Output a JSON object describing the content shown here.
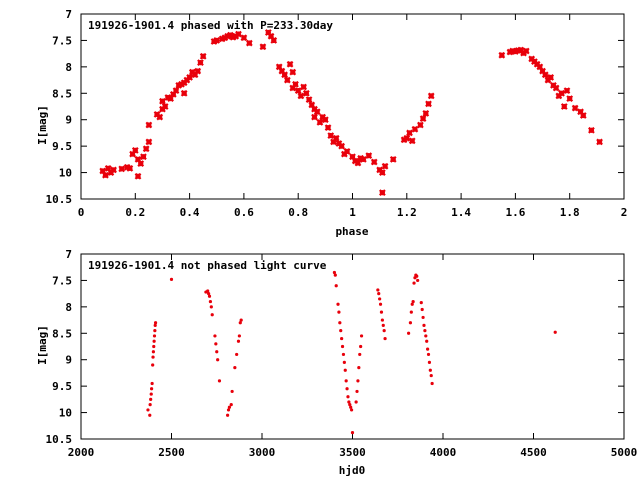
{
  "colors": {
    "points": "#e8000b",
    "frame": "#000000",
    "background": "#ffffff"
  },
  "chart_data": [
    {
      "type": "scatter",
      "title": "191926-1901.4 phased with P=233.30day",
      "xlabel": "phase",
      "ylabel": "I[mag]",
      "xlim": [
        0,
        2
      ],
      "ylim": [
        7,
        10.5
      ],
      "y_inverted": true,
      "grid": false,
      "xticks": [
        "0",
        "0.2",
        "0.4",
        "0.6",
        "0.8",
        "1",
        "1.2",
        "1.4",
        "1.6",
        "1.8",
        "2"
      ],
      "yticks": [
        "7",
        "7.5",
        "8",
        "8.5",
        "9",
        "9.5",
        "10",
        "10.5"
      ],
      "series": [
        {
          "marker": "x",
          "points": [
            [
              0.08,
              9.97
            ],
            [
              0.09,
              10.05
            ],
            [
              0.1,
              9.92
            ],
            [
              0.11,
              10.0
            ],
            [
              0.12,
              9.95
            ],
            [
              0.15,
              9.93
            ],
            [
              0.17,
              9.9
            ],
            [
              0.18,
              9.92
            ],
            [
              0.19,
              9.65
            ],
            [
              0.2,
              9.58
            ],
            [
              0.21,
              9.75
            ],
            [
              0.21,
              10.07
            ],
            [
              0.22,
              9.83
            ],
            [
              0.23,
              9.7
            ],
            [
              0.24,
              9.55
            ],
            [
              0.25,
              9.42
            ],
            [
              0.25,
              9.1
            ],
            [
              0.28,
              8.9
            ],
            [
              0.29,
              8.95
            ],
            [
              0.3,
              8.8
            ],
            [
              0.3,
              8.65
            ],
            [
              0.31,
              8.75
            ],
            [
              0.32,
              8.58
            ],
            [
              0.33,
              8.6
            ],
            [
              0.34,
              8.52
            ],
            [
              0.35,
              8.45
            ],
            [
              0.36,
              8.35
            ],
            [
              0.37,
              8.33
            ],
            [
              0.38,
              8.3
            ],
            [
              0.38,
              8.5
            ],
            [
              0.39,
              8.25
            ],
            [
              0.4,
              8.2
            ],
            [
              0.41,
              8.1
            ],
            [
              0.42,
              8.15
            ],
            [
              0.43,
              8.08
            ],
            [
              0.44,
              7.92
            ],
            [
              0.45,
              7.8
            ],
            [
              0.49,
              7.52
            ],
            [
              0.5,
              7.5
            ],
            [
              0.52,
              7.47
            ],
            [
              0.53,
              7.45
            ],
            [
              0.54,
              7.42
            ],
            [
              0.55,
              7.4
            ],
            [
              0.56,
              7.44
            ],
            [
              0.57,
              7.42
            ],
            [
              0.58,
              7.38
            ],
            [
              0.6,
              7.45
            ],
            [
              0.62,
              7.55
            ],
            [
              0.67,
              7.62
            ],
            [
              0.69,
              7.35
            ],
            [
              0.7,
              7.42
            ],
            [
              0.71,
              7.5
            ],
            [
              0.73,
              8.0
            ],
            [
              0.74,
              8.08
            ],
            [
              0.75,
              8.15
            ],
            [
              0.76,
              8.25
            ],
            [
              0.77,
              7.95
            ],
            [
              0.78,
              8.1
            ],
            [
              0.78,
              8.4
            ],
            [
              0.79,
              8.33
            ],
            [
              0.8,
              8.45
            ],
            [
              0.81,
              8.55
            ],
            [
              0.82,
              8.38
            ],
            [
              0.83,
              8.5
            ],
            [
              0.84,
              8.62
            ],
            [
              0.85,
              8.72
            ],
            [
              0.86,
              8.8
            ],
            [
              0.86,
              8.95
            ],
            [
              0.87,
              8.85
            ],
            [
              0.88,
              9.05
            ],
            [
              0.89,
              8.95
            ],
            [
              0.9,
              9.0
            ],
            [
              0.91,
              9.15
            ],
            [
              0.92,
              9.3
            ],
            [
              0.93,
              9.42
            ],
            [
              0.94,
              9.35
            ],
            [
              0.95,
              9.45
            ],
            [
              0.96,
              9.5
            ],
            [
              0.97,
              9.65
            ],
            [
              0.98,
              9.6
            ],
            [
              1.0,
              9.7
            ],
            [
              1.01,
              9.78
            ],
            [
              1.02,
              9.82
            ],
            [
              1.03,
              9.73
            ],
            [
              1.04,
              9.75
            ],
            [
              1.06,
              9.68
            ],
            [
              1.08,
              9.8
            ],
            [
              1.1,
              9.95
            ],
            [
              1.11,
              10.0
            ],
            [
              1.11,
              10.38
            ],
            [
              1.12,
              9.88
            ],
            [
              1.15,
              9.75
            ],
            [
              1.19,
              9.38
            ],
            [
              1.2,
              9.35
            ],
            [
              1.21,
              9.25
            ],
            [
              1.22,
              9.4
            ],
            [
              1.23,
              9.18
            ],
            [
              1.25,
              9.1
            ],
            [
              1.26,
              8.98
            ],
            [
              1.27,
              8.88
            ],
            [
              1.28,
              8.7
            ],
            [
              1.29,
              8.55
            ],
            [
              1.55,
              7.78
            ],
            [
              1.58,
              7.72
            ],
            [
              1.59,
              7.7
            ],
            [
              1.6,
              7.71
            ],
            [
              1.61,
              7.69
            ],
            [
              1.62,
              7.68
            ],
            [
              1.63,
              7.74
            ],
            [
              1.64,
              7.7
            ],
            [
              1.66,
              7.85
            ],
            [
              1.67,
              7.9
            ],
            [
              1.68,
              7.95
            ],
            [
              1.69,
              8.0
            ],
            [
              1.7,
              8.08
            ],
            [
              1.71,
              8.15
            ],
            [
              1.72,
              8.25
            ],
            [
              1.73,
              8.2
            ],
            [
              1.74,
              8.35
            ],
            [
              1.75,
              8.4
            ],
            [
              1.76,
              8.55
            ],
            [
              1.77,
              8.5
            ],
            [
              1.78,
              8.75
            ],
            [
              1.79,
              8.45
            ],
            [
              1.8,
              8.6
            ],
            [
              1.82,
              8.78
            ],
            [
              1.84,
              8.85
            ],
            [
              1.85,
              8.92
            ],
            [
              1.88,
              9.2
            ],
            [
              1.91,
              9.42
            ]
          ]
        }
      ]
    },
    {
      "type": "scatter",
      "title": "191926-1901.4 not phased light curve",
      "xlabel": "hjd0",
      "ylabel": "I[mag]",
      "xlim": [
        2000,
        5000
      ],
      "ylim": [
        7,
        10.5
      ],
      "y_inverted": true,
      "grid": false,
      "xticks": [
        "2000",
        "2500",
        "3000",
        "3500",
        "4000",
        "4500",
        "5000"
      ],
      "yticks": [
        "7",
        "7.5",
        "8",
        "8.5",
        "9",
        "9.5",
        "10",
        "10.5"
      ],
      "series": [
        {
          "marker": "dot",
          "points": [
            [
              2370,
              9.95
            ],
            [
              2380,
              10.05
            ],
            [
              2382,
              9.85
            ],
            [
              2385,
              9.75
            ],
            [
              2388,
              9.65
            ],
            [
              2390,
              9.55
            ],
            [
              2393,
              9.45
            ],
            [
              2396,
              9.1
            ],
            [
              2398,
              8.95
            ],
            [
              2400,
              8.85
            ],
            [
              2402,
              8.75
            ],
            [
              2404,
              8.65
            ],
            [
              2406,
              8.55
            ],
            [
              2408,
              8.45
            ],
            [
              2410,
              8.35
            ],
            [
              2412,
              8.3
            ],
            [
              2500,
              7.48
            ],
            [
              2690,
              7.72
            ],
            [
              2700,
              7.7
            ],
            [
              2705,
              7.75
            ],
            [
              2710,
              7.8
            ],
            [
              2715,
              7.9
            ],
            [
              2720,
              8.0
            ],
            [
              2725,
              8.15
            ],
            [
              2740,
              8.55
            ],
            [
              2745,
              8.7
            ],
            [
              2750,
              8.85
            ],
            [
              2755,
              9.0
            ],
            [
              2765,
              9.4
            ],
            [
              2810,
              10.05
            ],
            [
              2815,
              9.95
            ],
            [
              2820,
              9.9
            ],
            [
              2830,
              9.85
            ],
            [
              2835,
              9.6
            ],
            [
              2850,
              9.15
            ],
            [
              2860,
              8.9
            ],
            [
              2870,
              8.65
            ],
            [
              2875,
              8.55
            ],
            [
              2880,
              8.3
            ],
            [
              2885,
              8.25
            ],
            [
              3400,
              7.35
            ],
            [
              3405,
              7.4
            ],
            [
              3410,
              7.6
            ],
            [
              3420,
              7.95
            ],
            [
              3425,
              8.1
            ],
            [
              3430,
              8.3
            ],
            [
              3435,
              8.45
            ],
            [
              3440,
              8.6
            ],
            [
              3445,
              8.75
            ],
            [
              3450,
              8.9
            ],
            [
              3455,
              9.05
            ],
            [
              3460,
              9.2
            ],
            [
              3465,
              9.4
            ],
            [
              3470,
              9.55
            ],
            [
              3475,
              9.7
            ],
            [
              3480,
              9.8
            ],
            [
              3485,
              9.85
            ],
            [
              3490,
              9.9
            ],
            [
              3495,
              9.95
            ],
            [
              3500,
              10.38
            ],
            [
              3520,
              9.8
            ],
            [
              3525,
              9.6
            ],
            [
              3530,
              9.4
            ],
            [
              3535,
              9.15
            ],
            [
              3540,
              8.9
            ],
            [
              3545,
              8.75
            ],
            [
              3550,
              8.55
            ],
            [
              3640,
              7.68
            ],
            [
              3645,
              7.75
            ],
            [
              3650,
              7.85
            ],
            [
              3655,
              7.95
            ],
            [
              3660,
              8.1
            ],
            [
              3665,
              8.25
            ],
            [
              3670,
              8.35
            ],
            [
              3675,
              8.45
            ],
            [
              3680,
              8.6
            ],
            [
              3810,
              8.5
            ],
            [
              3820,
              8.3
            ],
            [
              3825,
              8.1
            ],
            [
              3830,
              7.95
            ],
            [
              3835,
              7.9
            ],
            [
              3840,
              7.55
            ],
            [
              3845,
              7.45
            ],
            [
              3850,
              7.4
            ],
            [
              3855,
              7.42
            ],
            [
              3860,
              7.5
            ],
            [
              3880,
              7.92
            ],
            [
              3885,
              8.05
            ],
            [
              3890,
              8.2
            ],
            [
              3895,
              8.35
            ],
            [
              3900,
              8.45
            ],
            [
              3905,
              8.55
            ],
            [
              3910,
              8.65
            ],
            [
              3915,
              8.8
            ],
            [
              3920,
              8.9
            ],
            [
              3925,
              9.05
            ],
            [
              3930,
              9.2
            ],
            [
              3935,
              9.3
            ],
            [
              3940,
              9.45
            ],
            [
              4620,
              8.48
            ]
          ]
        }
      ]
    }
  ]
}
